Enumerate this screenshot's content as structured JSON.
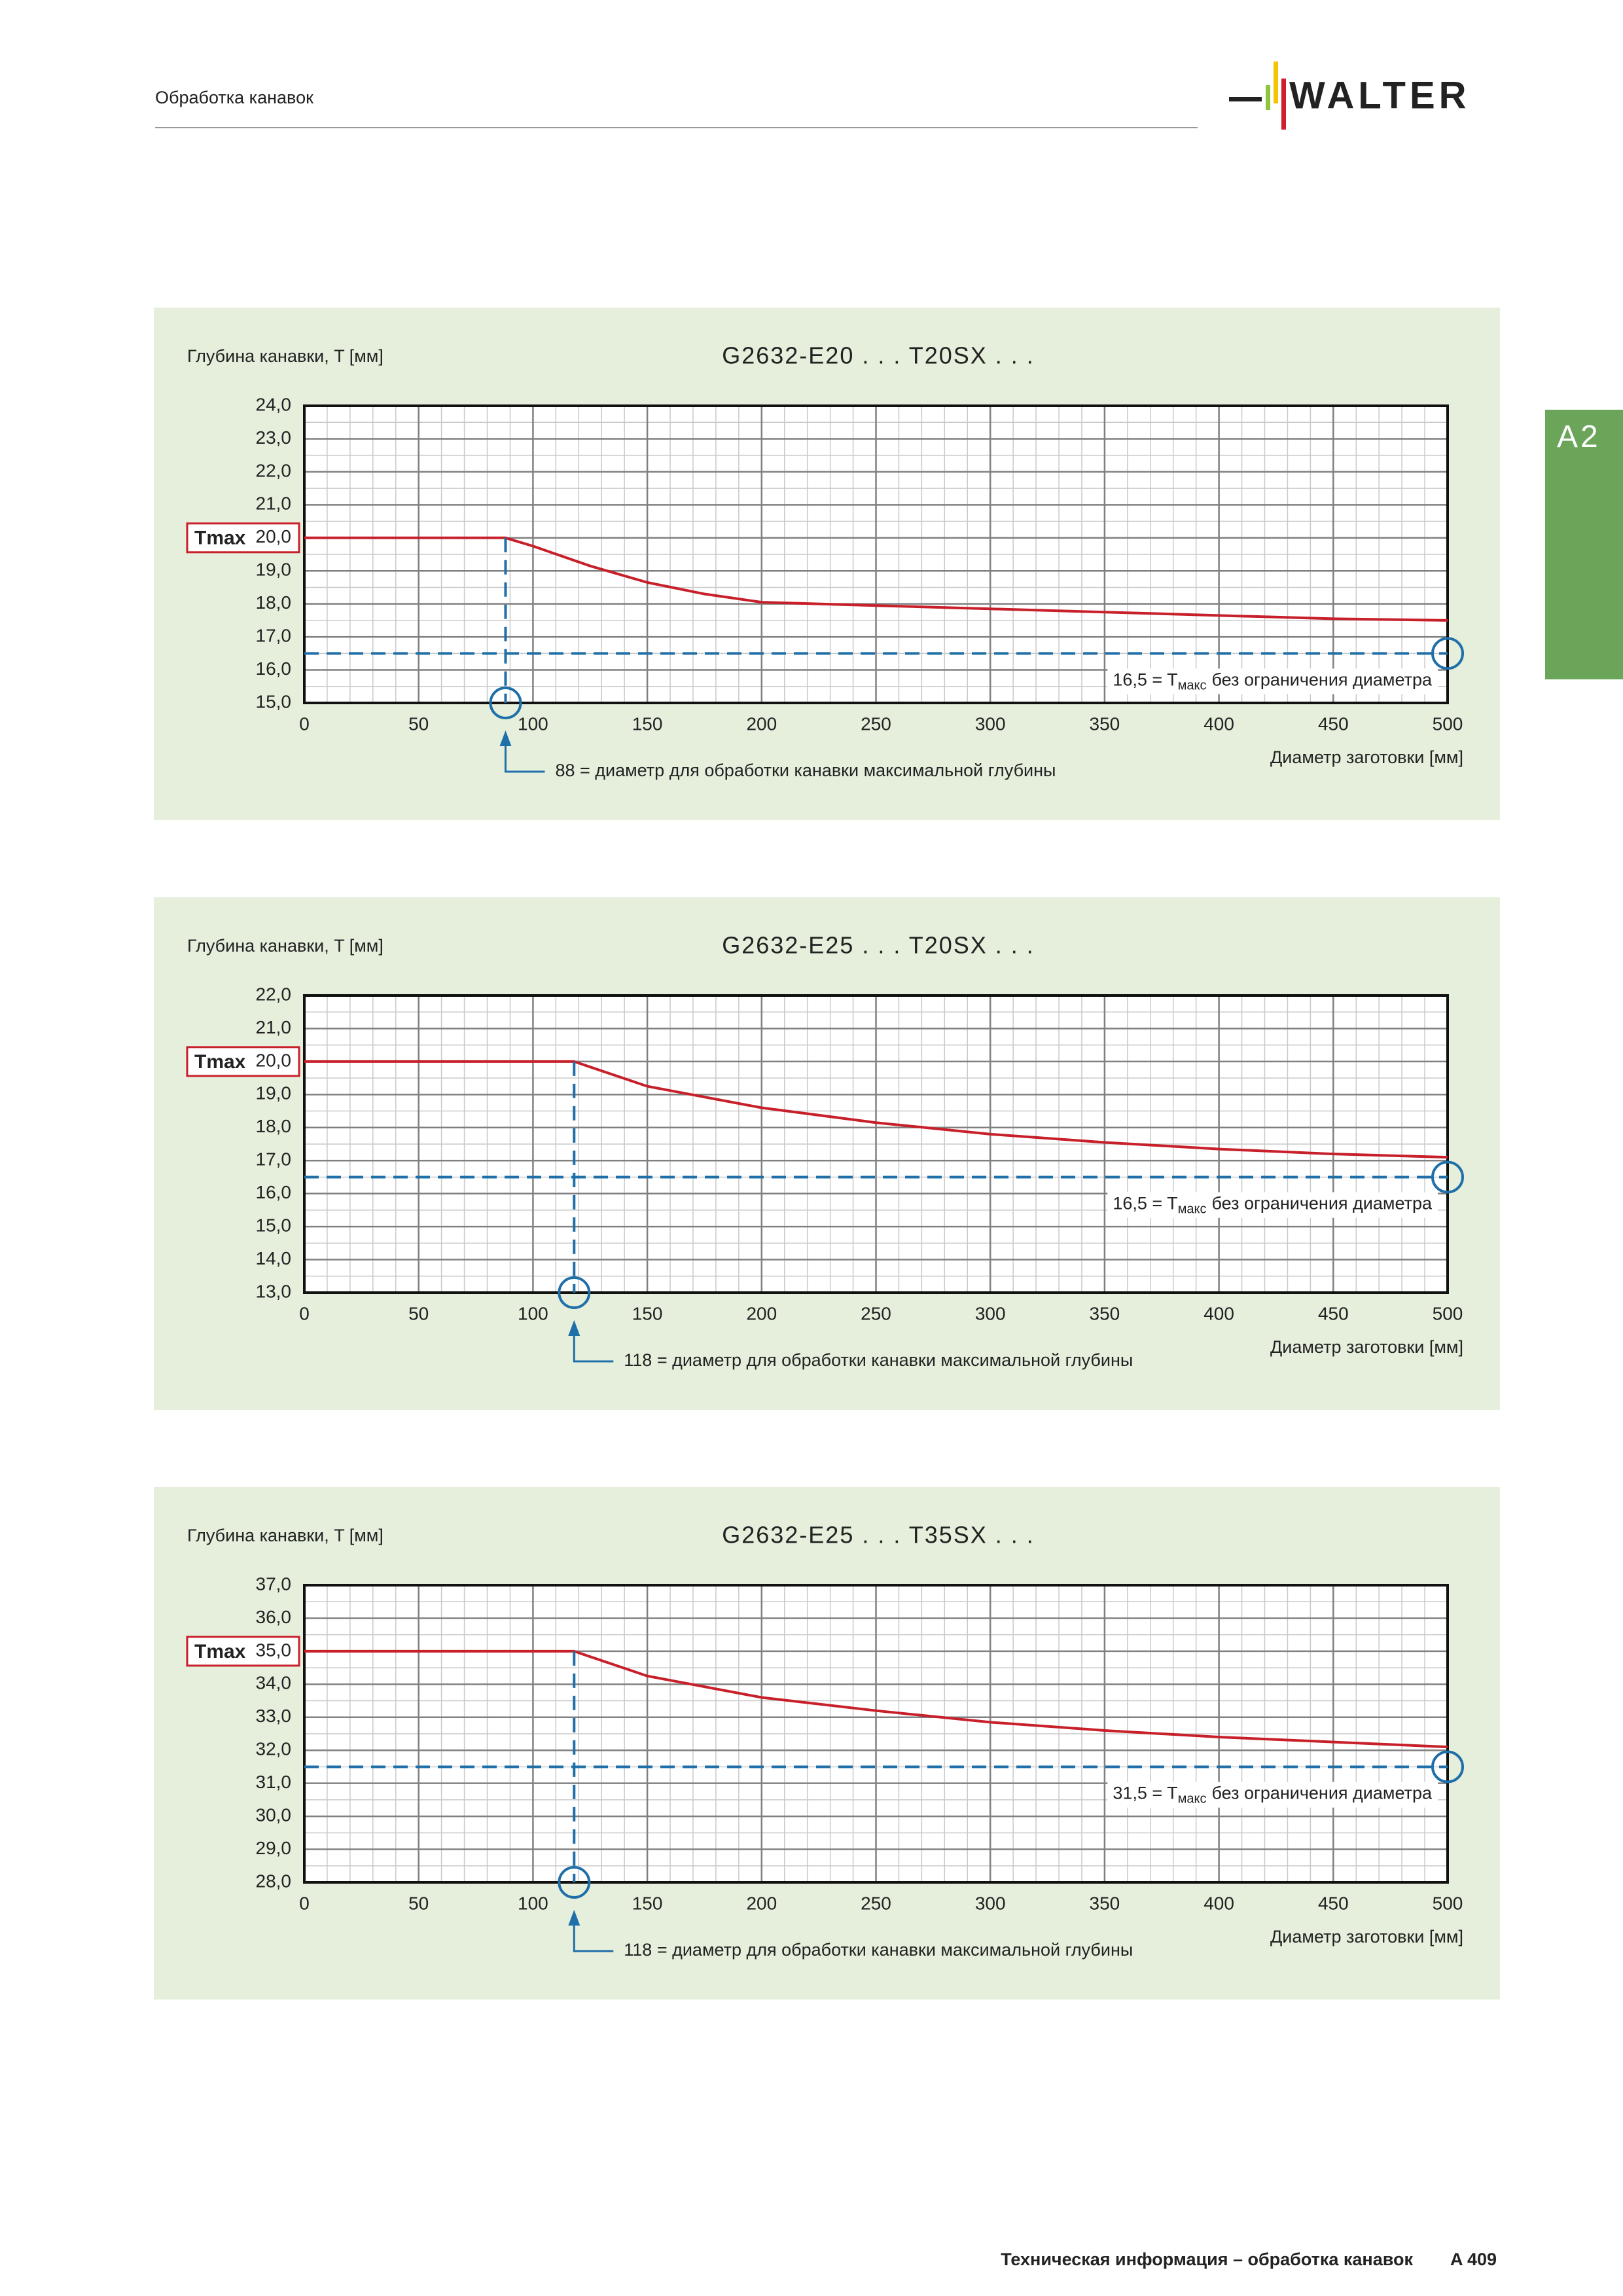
{
  "header": {
    "section": "Обработка канавок",
    "logo": "WALTER",
    "tab": "A2"
  },
  "footer": {
    "text": "Техническая информация – обработка канавок",
    "page": "A 409"
  },
  "chart_data": [
    {
      "type": "line",
      "title": "G2632-E20 . . . T20SX . . .",
      "y_label": "Глубина канавки, T [мм]",
      "x_label": "Диаметр заготовки [мм]",
      "x": [
        0,
        88,
        100,
        125,
        150,
        175,
        200,
        250,
        300,
        350,
        400,
        450,
        500
      ],
      "series": [
        {
          "color": "#c8202a",
          "values": [
            20,
            20,
            19.75,
            19.15,
            18.65,
            18.3,
            18.05,
            17.95,
            17.85,
            17.75,
            17.65,
            17.55,
            17.5
          ]
        }
      ],
      "xlim": [
        0,
        500
      ],
      "xticks": [
        0,
        50,
        100,
        150,
        200,
        250,
        300,
        350,
        400,
        450,
        500
      ],
      "ylim": [
        15,
        24
      ],
      "yticks": [
        {
          "value": 15,
          "label": "15,0"
        },
        {
          "value": 16,
          "label": "16,0"
        },
        {
          "value": 17,
          "label": "17,0"
        },
        {
          "value": 18,
          "label": "18,0"
        },
        {
          "value": 19,
          "label": "19,0"
        },
        {
          "value": 20,
          "label": "20,0"
        },
        {
          "value": 21,
          "label": "21,0"
        },
        {
          "value": 22,
          "label": "22,0"
        },
        {
          "value": 23,
          "label": "23,0"
        },
        {
          "value": 24,
          "label": "24,0"
        }
      ],
      "grid": true,
      "minor_step_x": 10,
      "minor_step_y": 0.5,
      "tmax": {
        "label": "Tmax",
        "value": 20
      },
      "hline": {
        "value": 16.5,
        "label": "16,5 = T",
        "label_sub": "макс",
        "label_rest": "без ограничения диаметра"
      },
      "vline": {
        "value": 88,
        "label": "88 = диаметр для обработки канавки максимальной глубины"
      },
      "marker_color": "#1f6fa8"
    },
    {
      "type": "line",
      "title": "G2632-E25 . . . T20SX . . .",
      "y_label": "Глубина канавки, T [мм]",
      "x_label": "Диаметр заготовки [мм]",
      "x": [
        0,
        118,
        150,
        200,
        250,
        300,
        350,
        400,
        450,
        500
      ],
      "series": [
        {
          "color": "#c8202a",
          "values": [
            20,
            20,
            19.25,
            18.6,
            18.15,
            17.8,
            17.55,
            17.35,
            17.2,
            17.1
          ]
        }
      ],
      "xlim": [
        0,
        500
      ],
      "xticks": [
        0,
        50,
        100,
        150,
        200,
        250,
        300,
        350,
        400,
        450,
        500
      ],
      "ylim": [
        13,
        22
      ],
      "yticks": [
        {
          "value": 13,
          "label": "13,0"
        },
        {
          "value": 14,
          "label": "14,0"
        },
        {
          "value": 15,
          "label": "15,0"
        },
        {
          "value": 16,
          "label": "16,0"
        },
        {
          "value": 17,
          "label": "17,0"
        },
        {
          "value": 18,
          "label": "18,0"
        },
        {
          "value": 19,
          "label": "19,0"
        },
        {
          "value": 20,
          "label": "20,0"
        },
        {
          "value": 21,
          "label": "21,0"
        },
        {
          "value": 22,
          "label": "22,0"
        }
      ],
      "grid": true,
      "minor_step_x": 10,
      "minor_step_y": 0.5,
      "tmax": {
        "label": "Tmax",
        "value": 20
      },
      "hline": {
        "value": 16.5,
        "label": "16,5 = T",
        "label_sub": "макс",
        "label_rest": "без ограничения диаметра"
      },
      "vline": {
        "value": 118,
        "label": "118 = диаметр для обработки канавки максимальной глубины"
      },
      "marker_color": "#1f6fa8"
    },
    {
      "type": "line",
      "title": "G2632-E25 . . . T35SX . . .",
      "y_label": "Глубина канавки, T [мм]",
      "x_label": "Диаметр заготовки [мм]",
      "x": [
        0,
        118,
        150,
        200,
        250,
        300,
        350,
        400,
        450,
        500
      ],
      "series": [
        {
          "color": "#c8202a",
          "values": [
            35,
            35,
            34.25,
            33.6,
            33.2,
            32.85,
            32.6,
            32.4,
            32.25,
            32.1
          ]
        }
      ],
      "xlim": [
        0,
        500
      ],
      "xticks": [
        0,
        50,
        100,
        150,
        200,
        250,
        300,
        350,
        400,
        450,
        500
      ],
      "ylim": [
        28,
        37
      ],
      "yticks": [
        {
          "value": 28,
          "label": "28,0"
        },
        {
          "value": 29,
          "label": "29,0"
        },
        {
          "value": 30,
          "label": "30,0"
        },
        {
          "value": 31,
          "label": "31,0"
        },
        {
          "value": 32,
          "label": "32,0"
        },
        {
          "value": 33,
          "label": "33,0"
        },
        {
          "value": 34,
          "label": "34,0"
        },
        {
          "value": 35,
          "label": "35,0"
        },
        {
          "value": 36,
          "label": "36,0"
        },
        {
          "value": 37,
          "label": "37,0"
        }
      ],
      "grid": true,
      "minor_step_x": 10,
      "minor_step_y": 0.5,
      "tmax": {
        "label": "Tmax",
        "value": 35
      },
      "hline": {
        "value": 31.5,
        "label": "31,5 = T",
        "label_sub": "макс",
        "label_rest": "без ограничения диаметра"
      },
      "vline": {
        "value": 118,
        "label": "118 = диаметр для обработки канавки максимальной глубины"
      },
      "marker_color": "#1f6fa8"
    }
  ]
}
